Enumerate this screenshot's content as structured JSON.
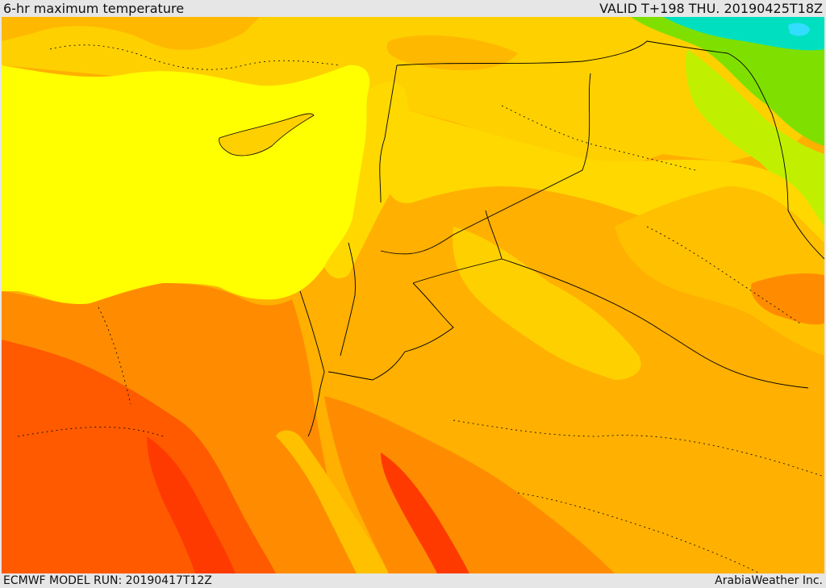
{
  "header": {
    "title": "6-hr maximum temperature",
    "valid": "VALID T+198 THU. 20190425T18Z"
  },
  "footer": {
    "model_run": "ECMWF MODEL RUN: 20190417T12Z",
    "credit": "ArabiaWeather Inc."
  },
  "map": {
    "variable": "6-hr maximum temperature",
    "region": "Eastern Mediterranean and Levant",
    "colors": {
      "sea": "#ffff00",
      "pale": "#ffd800",
      "mid": "#ffb000",
      "warm": "#ff8c00",
      "hot": "#ff5a00",
      "hottest": "#ff3a00",
      "cool_green": "#7fe000",
      "cold_cyan": "#00e0c0",
      "border": "#000000"
    }
  }
}
